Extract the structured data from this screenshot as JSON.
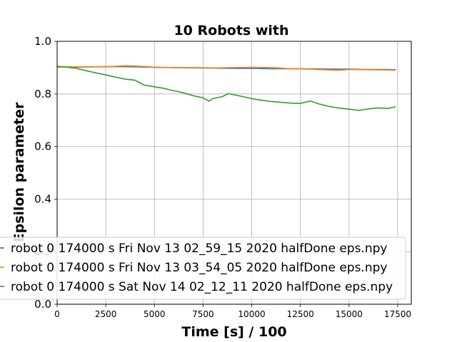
{
  "chart_data": {
    "type": "line",
    "title": "10 Robots with",
    "xlabel": "Time [s] / 100",
    "ylabel": "Epsilon parameter",
    "xlim": [
      0,
      18200
    ],
    "ylim": [
      0.0,
      1.0
    ],
    "xticks": [
      0,
      2500,
      5000,
      7500,
      10000,
      12500,
      15000,
      17500
    ],
    "xtick_labels": [
      "0",
      "2500",
      "5000",
      "7500",
      "10000",
      "12500",
      "15000",
      "17500"
    ],
    "yticks": [
      0.0,
      0.2,
      0.4,
      0.6,
      0.8,
      1.0
    ],
    "ytick_labels": [
      "0.0",
      "0.2",
      "0.4",
      "0.6",
      "0.8",
      "1.0"
    ],
    "grid": true,
    "legend_position": "lower-left",
    "series": [
      {
        "name": "robot 0 174000 s Fri Nov 13 02_59_15 2020 halfDone eps.npy",
        "color": "#1f77b4",
        "x": [
          0,
          1000,
          2000,
          3000,
          4000,
          5000,
          6000,
          7000,
          8000,
          9000,
          10000,
          11000,
          12000,
          13000,
          14000,
          15000,
          16000,
          17000,
          17400
        ],
        "y": [
          0.903,
          0.902,
          0.903,
          0.904,
          0.903,
          0.901,
          0.9,
          0.899,
          0.898,
          0.897,
          0.897,
          0.896,
          0.896,
          0.895,
          0.894,
          0.894,
          0.893,
          0.893,
          0.892
        ]
      },
      {
        "name": "robot 0 174000 s Fri Nov 13 03_54_05 2020 halfDone eps.npy",
        "color": "#ff7f0e",
        "x": [
          0,
          1000,
          2000,
          3000,
          3500,
          4000,
          4500,
          5000,
          6000,
          7000,
          8000,
          9000,
          10000,
          11000,
          12000,
          13000,
          14000,
          14500,
          15000,
          16000,
          17000,
          17400
        ],
        "y": [
          0.902,
          0.903,
          0.903,
          0.905,
          0.907,
          0.906,
          0.904,
          0.902,
          0.9,
          0.9,
          0.899,
          0.9,
          0.901,
          0.9,
          0.896,
          0.894,
          0.891,
          0.89,
          0.893,
          0.892,
          0.891,
          0.89
        ]
      },
      {
        "name": "robot 0 174000 s Sat Nov 14 02_12_11 2020 halfDone eps.npy",
        "color": "#2ca02c",
        "x": [
          0,
          500,
          1000,
          1500,
          2000,
          2500,
          3000,
          3500,
          4000,
          4300,
          4500,
          5000,
          5500,
          6000,
          6500,
          7000,
          7500,
          7800,
          8000,
          8500,
          8800,
          9200,
          9600,
          10000,
          10500,
          11000,
          11500,
          12000,
          12500,
          13000,
          13500,
          14000,
          14500,
          15000,
          15500,
          16000,
          16500,
          17000,
          17400
        ],
        "y": [
          0.905,
          0.902,
          0.897,
          0.888,
          0.88,
          0.872,
          0.864,
          0.856,
          0.852,
          0.84,
          0.833,
          0.827,
          0.821,
          0.812,
          0.804,
          0.793,
          0.785,
          0.772,
          0.782,
          0.79,
          0.801,
          0.795,
          0.789,
          0.782,
          0.776,
          0.771,
          0.768,
          0.765,
          0.764,
          0.773,
          0.761,
          0.752,
          0.746,
          0.742,
          0.737,
          0.743,
          0.747,
          0.745,
          0.751
        ]
      }
    ]
  }
}
